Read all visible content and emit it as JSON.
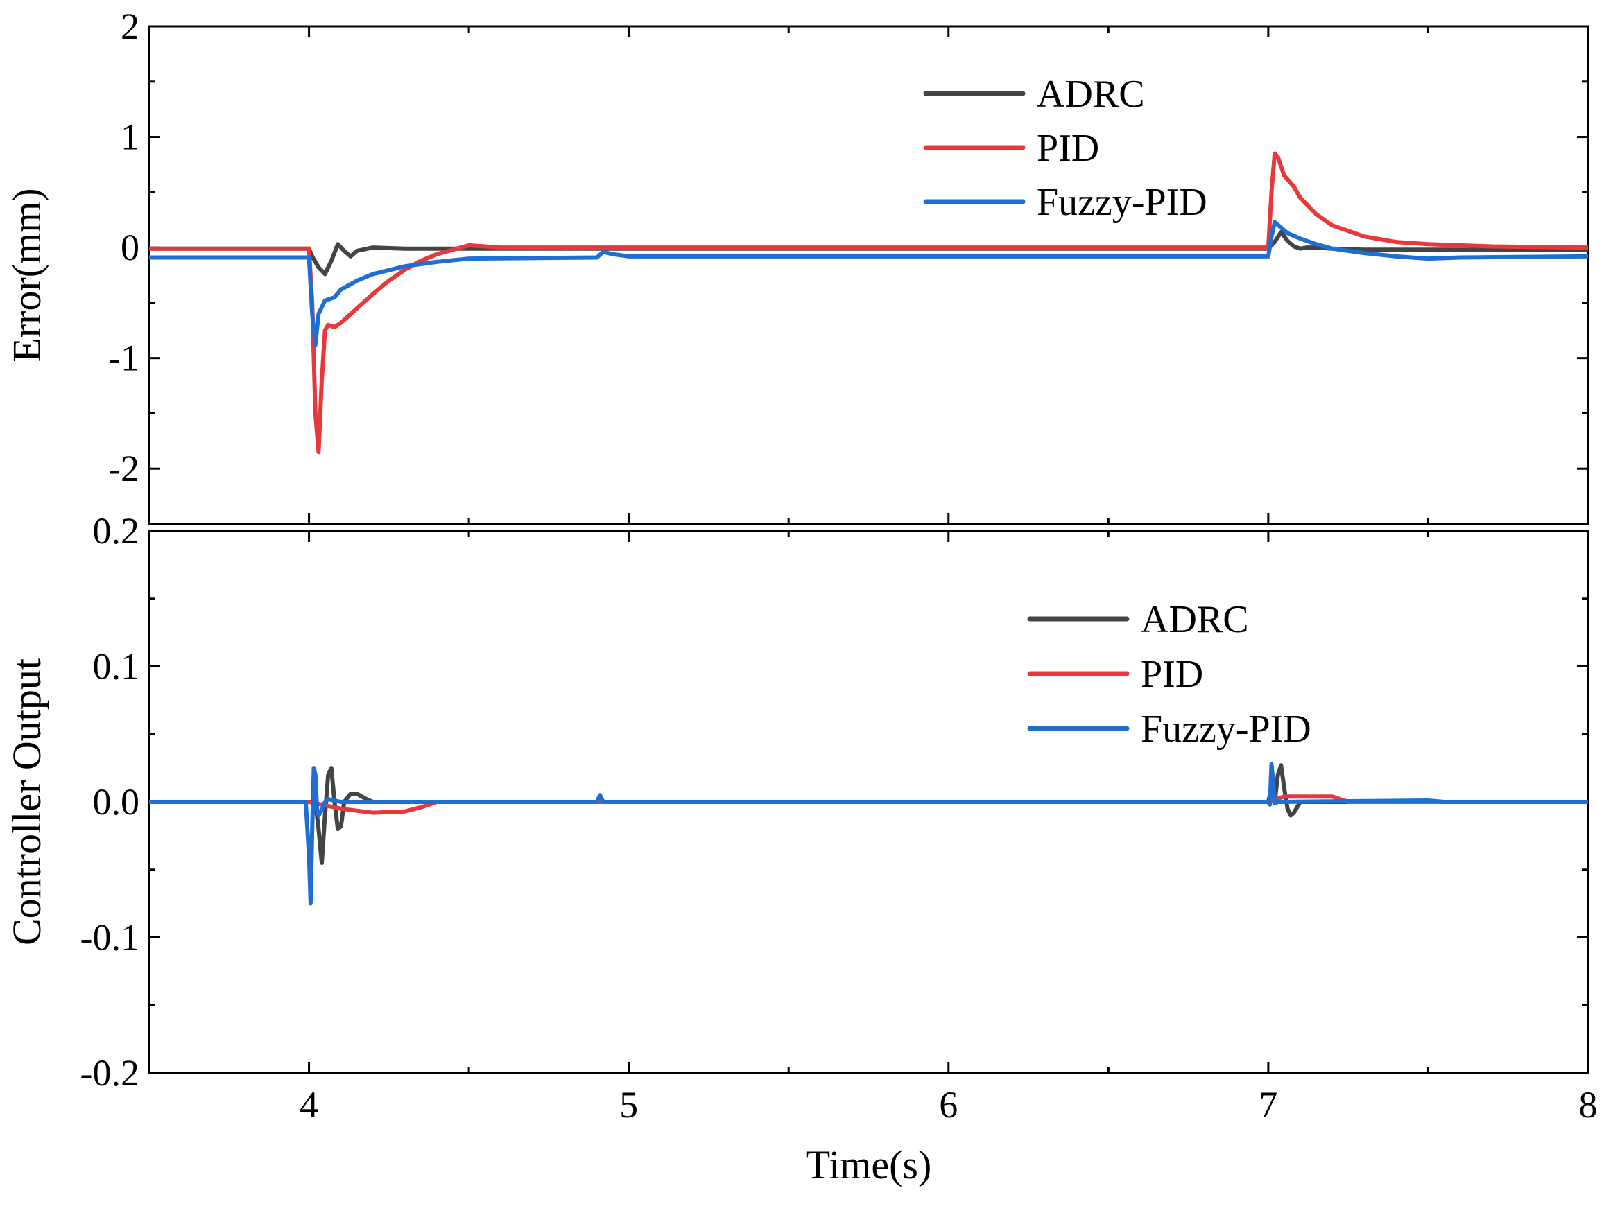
{
  "chart_data": [
    {
      "type": "line",
      "panel": "top",
      "title": "",
      "xlabel": "",
      "ylabel": "Error(mm)",
      "xlim": [
        3.5,
        8
      ],
      "ylim": [
        -2.5,
        2
      ],
      "xticks": [
        4,
        5,
        6,
        7,
        8
      ],
      "yticks": [
        -2,
        -1,
        0,
        1,
        2
      ],
      "yticklabels": [
        "-2",
        "-1",
        "0",
        "1",
        "2"
      ],
      "legend_position": "top-center",
      "series": [
        {
          "name": "ADRC",
          "color": "#444444",
          "x": [
            3.5,
            4.0,
            4.01,
            4.03,
            4.05,
            4.07,
            4.09,
            4.11,
            4.13,
            4.15,
            4.2,
            4.3,
            4.5,
            5.0,
            6.0,
            7.0,
            7.02,
            7.04,
            7.06,
            7.08,
            7.1,
            7.12,
            7.15,
            7.2,
            7.3,
            7.5,
            8.0
          ],
          "y": [
            -0.01,
            -0.01,
            -0.08,
            -0.18,
            -0.24,
            -0.12,
            0.03,
            -0.03,
            -0.08,
            -0.03,
            0.0,
            -0.01,
            -0.01,
            -0.01,
            -0.01,
            -0.01,
            0.05,
            0.14,
            0.06,
            0.01,
            -0.01,
            0.0,
            0.0,
            -0.01,
            -0.02,
            -0.02,
            -0.02
          ]
        },
        {
          "name": "PID",
          "color": "#e8383b",
          "x": [
            3.5,
            4.0,
            4.01,
            4.02,
            4.03,
            4.04,
            4.05,
            4.06,
            4.08,
            4.1,
            4.15,
            4.2,
            4.25,
            4.3,
            4.35,
            4.4,
            4.45,
            4.5,
            4.6,
            5.0,
            6.0,
            7.0,
            7.01,
            7.02,
            7.03,
            7.05,
            7.08,
            7.1,
            7.15,
            7.2,
            7.3,
            7.4,
            7.5,
            7.7,
            8.0
          ],
          "y": [
            -0.01,
            -0.01,
            -0.5,
            -1.5,
            -1.85,
            -1.2,
            -0.75,
            -0.7,
            -0.72,
            -0.68,
            -0.55,
            -0.42,
            -0.3,
            -0.2,
            -0.12,
            -0.06,
            -0.02,
            0.02,
            0.0,
            0.0,
            0.0,
            0.0,
            0.5,
            0.85,
            0.82,
            0.65,
            0.55,
            0.45,
            0.3,
            0.2,
            0.1,
            0.05,
            0.03,
            0.01,
            0.0
          ]
        },
        {
          "name": "Fuzzy-PID",
          "color": "#1f6ed4",
          "x": [
            3.5,
            4.0,
            4.01,
            4.02,
            4.03,
            4.05,
            4.08,
            4.1,
            4.15,
            4.2,
            4.3,
            4.4,
            4.5,
            4.9,
            4.92,
            4.95,
            5.0,
            6.0,
            7.0,
            7.01,
            7.02,
            7.04,
            7.06,
            7.1,
            7.15,
            7.2,
            7.3,
            7.4,
            7.5,
            7.6,
            8.0
          ],
          "y": [
            -0.09,
            -0.09,
            -0.6,
            -0.88,
            -0.6,
            -0.48,
            -0.45,
            -0.38,
            -0.3,
            -0.24,
            -0.17,
            -0.13,
            -0.1,
            -0.09,
            -0.04,
            -0.06,
            -0.08,
            -0.08,
            -0.08,
            0.1,
            0.23,
            0.18,
            0.13,
            0.08,
            0.03,
            -0.01,
            -0.05,
            -0.08,
            -0.1,
            -0.09,
            -0.08
          ]
        }
      ]
    },
    {
      "type": "line",
      "panel": "bottom",
      "title": "",
      "xlabel": "Time(s)",
      "ylabel": "Controller Output",
      "xlim": [
        3.5,
        8
      ],
      "ylim": [
        -0.2,
        0.2
      ],
      "xticks": [
        4,
        5,
        6,
        7,
        8
      ],
      "xticklabels": [
        "4",
        "5",
        "6",
        "7",
        "8"
      ],
      "yticks": [
        -0.2,
        -0.1,
        0.0,
        0.1,
        0.2
      ],
      "yticklabels": [
        "-0.2",
        "-0.1",
        "0.0",
        "0.1",
        "0.2"
      ],
      "legend_position": "center-right",
      "series": [
        {
          "name": "ADRC",
          "color": "#444444",
          "x": [
            3.5,
            4.0,
            4.02,
            4.03,
            4.04,
            4.05,
            4.06,
            4.07,
            4.08,
            4.09,
            4.1,
            4.11,
            4.13,
            4.15,
            4.18,
            4.2,
            5.0,
            7.0,
            7.01,
            7.02,
            7.03,
            7.04,
            7.05,
            7.06,
            7.07,
            7.08,
            7.1,
            7.15,
            8.0
          ],
          "y": [
            0.0,
            0.0,
            0.0,
            -0.02,
            -0.045,
            -0.01,
            0.02,
            0.025,
            0.0,
            -0.02,
            -0.018,
            0.0,
            0.006,
            0.006,
            0.002,
            0.0,
            0.0,
            0.0,
            0.01,
            0.0,
            0.02,
            0.027,
            0.01,
            -0.005,
            -0.01,
            -0.008,
            0.0,
            0.0,
            0.0
          ]
        },
        {
          "name": "PID",
          "color": "#e8383b",
          "x": [
            3.5,
            4.0,
            4.1,
            4.2,
            4.3,
            4.35,
            4.4,
            7.0,
            7.05,
            7.2,
            7.25,
            8.0
          ],
          "y": [
            0.0,
            0.0,
            -0.005,
            -0.008,
            -0.007,
            -0.004,
            0.0,
            0.0,
            0.004,
            0.004,
            0.0,
            0.0
          ]
        },
        {
          "name": "Fuzzy-PID",
          "color": "#1f6ed4",
          "x": [
            3.5,
            3.99,
            4.0,
            4.005,
            4.01,
            4.015,
            4.02,
            4.025,
            4.03,
            4.04,
            4.05,
            4.06,
            4.1,
            4.9,
            4.91,
            4.92,
            5.0,
            7.0,
            7.005,
            7.01,
            7.015,
            7.02,
            7.03,
            7.5,
            7.55,
            8.0
          ],
          "y": [
            0.0,
            0.0,
            -0.04,
            -0.075,
            -0.02,
            0.025,
            0.02,
            -0.005,
            -0.01,
            -0.006,
            0.0,
            0.002,
            0.0,
            0.0,
            0.005,
            0.0,
            0.0,
            0.0,
            -0.002,
            0.028,
            0.015,
            -0.001,
            0.0,
            0.001,
            0.0,
            0.0
          ]
        }
      ]
    }
  ]
}
